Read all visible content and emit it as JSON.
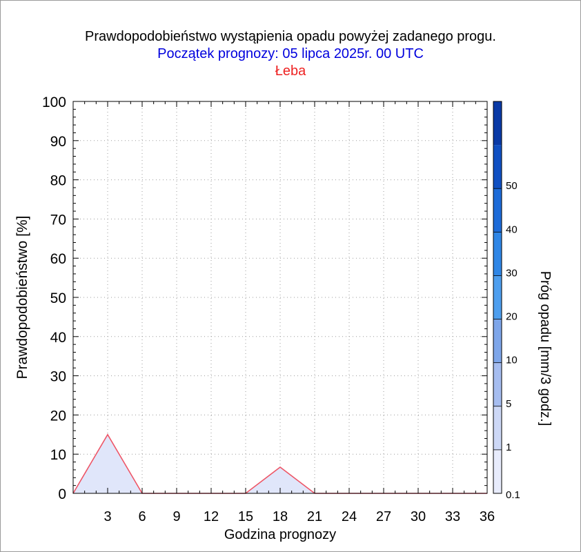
{
  "chart_data": {
    "type": "area",
    "title": "Prawdopodobieństwo wystąpienia opadu powyżej zadanego progu.",
    "subtitle": "Początek prognozy: 05 lipca 2025r. 00 UTC",
    "location": "Łeba",
    "xlabel": "Godzina prognozy",
    "ylabel": "Prawdopodobieństwo [%]",
    "colorbar_label": "Próg opadu [mm/3 godz.]",
    "xlim": [
      0,
      36
    ],
    "ylim": [
      0,
      100
    ],
    "x_ticks": [
      3,
      6,
      9,
      12,
      15,
      18,
      21,
      24,
      27,
      30,
      33,
      36
    ],
    "y_ticks": [
      0,
      10,
      20,
      30,
      40,
      50,
      60,
      70,
      80,
      90,
      100
    ],
    "grid": true,
    "series": [
      {
        "threshold": "0.1",
        "color": "#e0e6fa",
        "line_color": "#ee5566",
        "x": [
          0,
          3,
          6,
          9,
          12,
          15,
          18,
          21,
          24,
          27,
          30,
          33,
          36
        ],
        "y": [
          0,
          15,
          0,
          0,
          0,
          0,
          6.7,
          0,
          0,
          0,
          0,
          0,
          0
        ]
      }
    ],
    "colorbar": {
      "labels": [
        "0.1",
        "1",
        "5",
        "10",
        "20",
        "30",
        "40",
        "50"
      ],
      "colors": [
        "#e8ecfc",
        "#cdd8f6",
        "#a6bdf0",
        "#7ea6ea",
        "#4e9eee",
        "#2f86e6",
        "#1d6bd8",
        "#1050c2",
        "#0a3aa6"
      ]
    }
  }
}
